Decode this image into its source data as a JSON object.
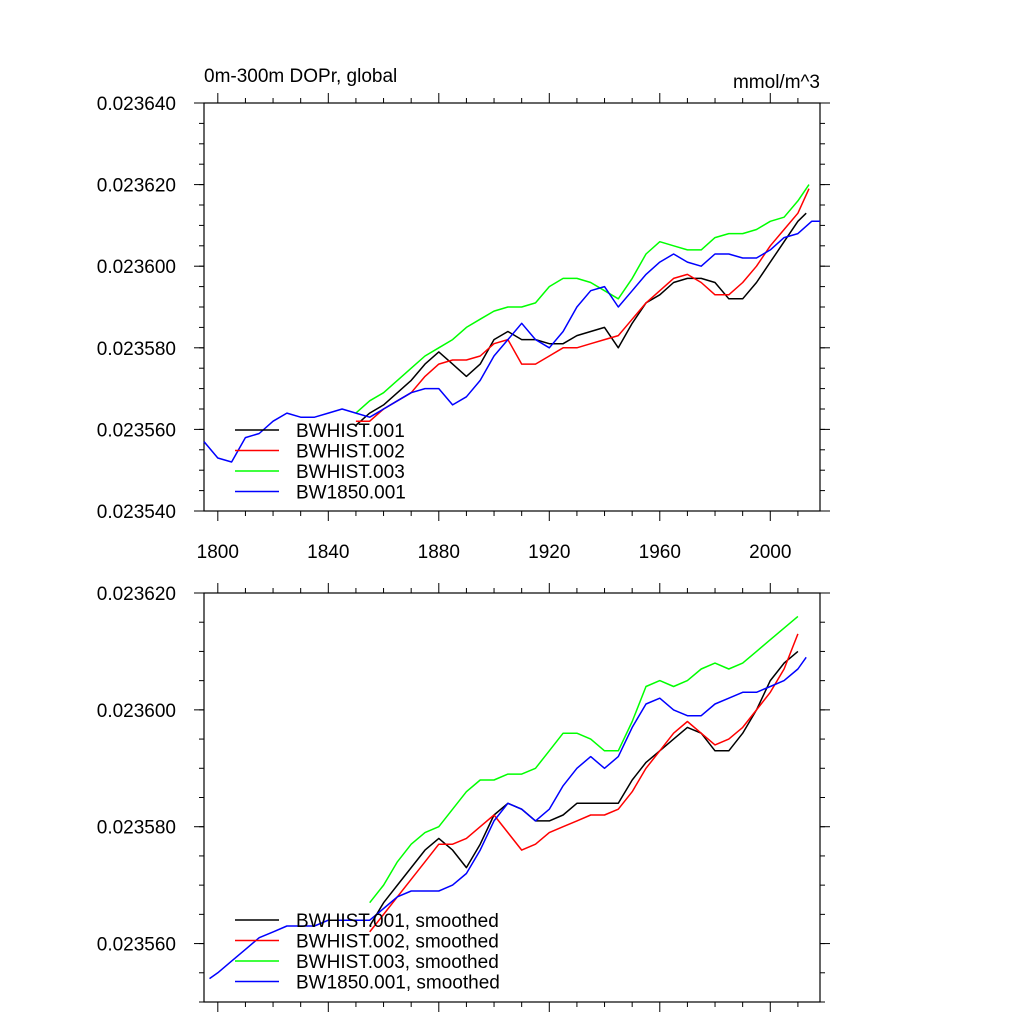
{
  "chart_data": [
    {
      "type": "line",
      "title": "0m-300m DOPr, global",
      "units": "mmol/m^3",
      "xlim": [
        1795,
        2018
      ],
      "ylim": [
        0.02354,
        0.02364
      ],
      "xticks": [
        1800,
        1840,
        1880,
        1920,
        1960,
        2000
      ],
      "yticks": [
        0.02354,
        0.02356,
        0.02358,
        0.0236,
        0.02362,
        0.02364
      ],
      "ytick_labels": [
        "0.023540",
        "0.023560",
        "0.023580",
        "0.023600",
        "0.023620",
        "0.023640"
      ],
      "legend_position": "bottom-left",
      "series": [
        {
          "name": "BWHIST.001",
          "color": "#000000",
          "x": [
            1850,
            1855,
            1860,
            1865,
            1870,
            1875,
            1880,
            1885,
            1890,
            1895,
            1900,
            1905,
            1910,
            1915,
            1920,
            1925,
            1930,
            1935,
            1940,
            1945,
            1950,
            1955,
            1960,
            1965,
            1970,
            1975,
            1980,
            1985,
            1990,
            1995,
            2000,
            2005,
            2010,
            2013
          ],
          "y": [
            0.023561,
            0.023564,
            0.023566,
            0.023569,
            0.023572,
            0.023576,
            0.023579,
            0.023576,
            0.023573,
            0.023576,
            0.023582,
            0.023584,
            0.023582,
            0.023582,
            0.023581,
            0.023581,
            0.023583,
            0.023584,
            0.023585,
            0.02358,
            0.023586,
            0.023591,
            0.023593,
            0.023596,
            0.023597,
            0.023597,
            0.023596,
            0.023592,
            0.023592,
            0.023596,
            0.023601,
            0.023606,
            0.023611,
            0.023613
          ]
        },
        {
          "name": "BWHIST.002",
          "color": "#ff0000",
          "x": [
            1850,
            1855,
            1860,
            1865,
            1870,
            1875,
            1880,
            1885,
            1890,
            1895,
            1900,
            1905,
            1910,
            1915,
            1920,
            1925,
            1930,
            1935,
            1940,
            1945,
            1950,
            1955,
            1960,
            1965,
            1970,
            1975,
            1980,
            1985,
            1990,
            1995,
            2000,
            2005,
            2010,
            2014
          ],
          "y": [
            0.023562,
            0.023562,
            0.023565,
            0.023567,
            0.023569,
            0.023573,
            0.023576,
            0.023577,
            0.023577,
            0.023578,
            0.023581,
            0.023582,
            0.023576,
            0.023576,
            0.023578,
            0.02358,
            0.02358,
            0.023581,
            0.023582,
            0.023583,
            0.023587,
            0.023591,
            0.023594,
            0.023597,
            0.023598,
            0.023596,
            0.023593,
            0.023593,
            0.023596,
            0.0236,
            0.023605,
            0.023609,
            0.023613,
            0.023619
          ]
        },
        {
          "name": "BWHIST.003",
          "color": "#00ff00",
          "x": [
            1850,
            1855,
            1860,
            1865,
            1870,
            1875,
            1880,
            1885,
            1890,
            1895,
            1900,
            1905,
            1910,
            1915,
            1920,
            1925,
            1930,
            1935,
            1940,
            1945,
            1950,
            1955,
            1960,
            1965,
            1970,
            1975,
            1980,
            1985,
            1990,
            1995,
            2000,
            2005,
            2010,
            2014
          ],
          "y": [
            0.023564,
            0.023567,
            0.023569,
            0.023572,
            0.023575,
            0.023578,
            0.02358,
            0.023582,
            0.023585,
            0.023587,
            0.023589,
            0.02359,
            0.02359,
            0.023591,
            0.023595,
            0.023597,
            0.023597,
            0.023596,
            0.023594,
            0.023592,
            0.023597,
            0.023603,
            0.023606,
            0.023605,
            0.023604,
            0.023604,
            0.023607,
            0.023608,
            0.023608,
            0.023609,
            0.023611,
            0.023612,
            0.023616,
            0.02362
          ]
        },
        {
          "name": "BW1850.001",
          "color": "#0000ff",
          "x": [
            1795,
            1800,
            1805,
            1810,
            1815,
            1820,
            1825,
            1830,
            1835,
            1840,
            1845,
            1850,
            1855,
            1860,
            1865,
            1870,
            1875,
            1880,
            1885,
            1890,
            1895,
            1900,
            1905,
            1910,
            1915,
            1920,
            1925,
            1930,
            1935,
            1940,
            1945,
            1950,
            1955,
            1960,
            1965,
            1970,
            1975,
            1980,
            1985,
            1990,
            1995,
            2000,
            2005,
            2010,
            2015,
            2018
          ],
          "y": [
            0.023557,
            0.023553,
            0.023552,
            0.023558,
            0.023559,
            0.023562,
            0.023564,
            0.023563,
            0.023563,
            0.023564,
            0.023565,
            0.023564,
            0.023563,
            0.023565,
            0.023567,
            0.023569,
            0.02357,
            0.02357,
            0.023566,
            0.023568,
            0.023572,
            0.023578,
            0.023582,
            0.023586,
            0.023582,
            0.02358,
            0.023584,
            0.02359,
            0.023594,
            0.023595,
            0.02359,
            0.023594,
            0.023598,
            0.023601,
            0.023603,
            0.023601,
            0.0236,
            0.023603,
            0.023603,
            0.023602,
            0.023602,
            0.023604,
            0.023607,
            0.023608,
            0.023611,
            0.023611
          ]
        }
      ]
    },
    {
      "type": "line",
      "title": "",
      "xlim": [
        1795,
        2018
      ],
      "ylim": [
        0.02355,
        0.02362
      ],
      "xticks": [
        1800,
        1840,
        1880,
        1920,
        1960,
        2000
      ],
      "yticks": [
        0.02356,
        0.02358,
        0.0236,
        0.02362
      ],
      "ytick_labels": [
        "0.023560",
        "0.023580",
        "0.023600",
        "0.023620"
      ],
      "legend_position": "bottom-left",
      "series": [
        {
          "name": "BWHIST.001, smoothed",
          "color": "#000000",
          "x": [
            1855,
            1860,
            1865,
            1870,
            1875,
            1880,
            1885,
            1890,
            1895,
            1900,
            1905,
            1910,
            1915,
            1920,
            1925,
            1930,
            1935,
            1940,
            1945,
            1950,
            1955,
            1960,
            1965,
            1970,
            1975,
            1980,
            1985,
            1990,
            1995,
            2000,
            2005,
            2010
          ],
          "y": [
            0.023563,
            0.023567,
            0.02357,
            0.023573,
            0.023576,
            0.023578,
            0.023576,
            0.023573,
            0.023577,
            0.023582,
            0.023584,
            0.023583,
            0.023581,
            0.023581,
            0.023582,
            0.023584,
            0.023584,
            0.023584,
            0.023584,
            0.023588,
            0.023591,
            0.023593,
            0.023595,
            0.023597,
            0.023596,
            0.023593,
            0.023593,
            0.023596,
            0.0236,
            0.023605,
            0.023608,
            0.02361
          ]
        },
        {
          "name": "BWHIST.002, smoothed",
          "color": "#ff0000",
          "x": [
            1855,
            1860,
            1865,
            1870,
            1875,
            1880,
            1885,
            1890,
            1895,
            1900,
            1905,
            1910,
            1915,
            1920,
            1925,
            1930,
            1935,
            1940,
            1945,
            1950,
            1955,
            1960,
            1965,
            1970,
            1975,
            1980,
            1985,
            1990,
            1995,
            2000,
            2005,
            2010
          ],
          "y": [
            0.023562,
            0.023565,
            0.023568,
            0.023571,
            0.023574,
            0.023577,
            0.023577,
            0.023578,
            0.02358,
            0.023582,
            0.023579,
            0.023576,
            0.023577,
            0.023579,
            0.02358,
            0.023581,
            0.023582,
            0.023582,
            0.023583,
            0.023586,
            0.02359,
            0.023593,
            0.023596,
            0.023598,
            0.023596,
            0.023594,
            0.023595,
            0.023597,
            0.0236,
            0.023603,
            0.023607,
            0.023613
          ]
        },
        {
          "name": "BWHIST.003, smoothed",
          "color": "#00ff00",
          "x": [
            1855,
            1860,
            1865,
            1870,
            1875,
            1880,
            1885,
            1890,
            1895,
            1900,
            1905,
            1910,
            1915,
            1920,
            1925,
            1930,
            1935,
            1940,
            1945,
            1950,
            1955,
            1960,
            1965,
            1970,
            1975,
            1980,
            1985,
            1990,
            1995,
            2000,
            2005,
            2010
          ],
          "y": [
            0.023567,
            0.02357,
            0.023574,
            0.023577,
            0.023579,
            0.02358,
            0.023583,
            0.023586,
            0.023588,
            0.023588,
            0.023589,
            0.023589,
            0.02359,
            0.023593,
            0.023596,
            0.023596,
            0.023595,
            0.023593,
            0.023593,
            0.023598,
            0.023604,
            0.023605,
            0.023604,
            0.023605,
            0.023607,
            0.023608,
            0.023607,
            0.023608,
            0.02361,
            0.023612,
            0.023614,
            0.023616
          ]
        },
        {
          "name": "BW1850.001, smoothed",
          "color": "#0000ff",
          "x": [
            1797,
            1800,
            1805,
            1810,
            1815,
            1820,
            1825,
            1830,
            1835,
            1840,
            1845,
            1850,
            1855,
            1860,
            1865,
            1870,
            1875,
            1880,
            1885,
            1890,
            1895,
            1900,
            1905,
            1910,
            1915,
            1920,
            1925,
            1930,
            1935,
            1940,
            1945,
            1950,
            1955,
            1960,
            1965,
            1970,
            1975,
            1980,
            1985,
            1990,
            1995,
            2000,
            2005,
            2010,
            2013
          ],
          "y": [
            0.023554,
            0.023555,
            0.023557,
            0.023559,
            0.023561,
            0.023562,
            0.023563,
            0.023563,
            0.023563,
            0.023564,
            0.023564,
            0.023564,
            0.023564,
            0.023566,
            0.023568,
            0.023569,
            0.023569,
            0.023569,
            0.02357,
            0.023572,
            0.023576,
            0.023581,
            0.023584,
            0.023583,
            0.023581,
            0.023583,
            0.023587,
            0.02359,
            0.023592,
            0.02359,
            0.023592,
            0.023597,
            0.023601,
            0.023602,
            0.0236,
            0.023599,
            0.023599,
            0.023601,
            0.023602,
            0.023603,
            0.023603,
            0.023604,
            0.023605,
            0.023607,
            0.023609
          ]
        }
      ]
    }
  ]
}
